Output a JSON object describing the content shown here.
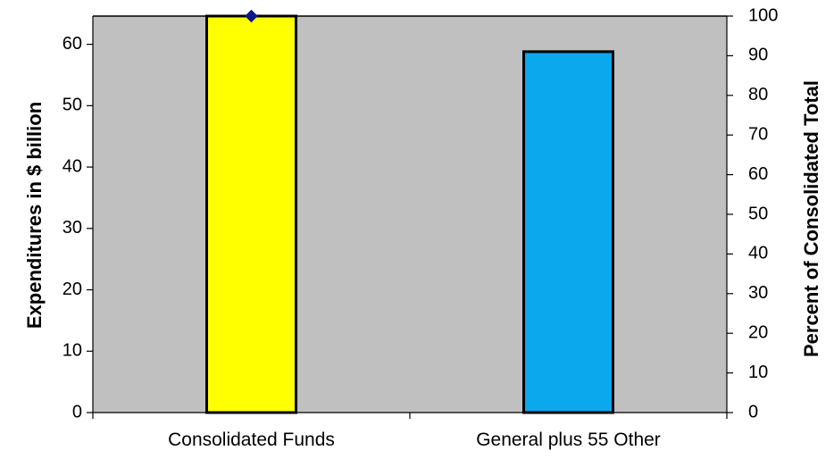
{
  "chart_data": {
    "type": "bar",
    "categories": [
      "Consolidated Funds",
      "General plus 55 Other"
    ],
    "values": [
      64.6,
      58.8
    ],
    "ylabel": "Expenditures in $ billion",
    "ylim": [
      0,
      64.6
    ],
    "yticks": [
      0,
      10,
      20,
      30,
      40,
      50,
      60
    ],
    "y2label": "Percent of Consolidated Total",
    "y2lim": [
      0,
      100
    ],
    "y2ticks": [
      0,
      10,
      20,
      30,
      40,
      50,
      60,
      70,
      80,
      90,
      100
    ],
    "marker": {
      "category": "Consolidated Funds",
      "y2": 100
    },
    "bar_colors": [
      "#ffff00",
      "#0ba8ee"
    ],
    "plot_background": "#c0c0c0",
    "marker_color": "#0a1a8a",
    "grid": false,
    "legend": "none"
  }
}
